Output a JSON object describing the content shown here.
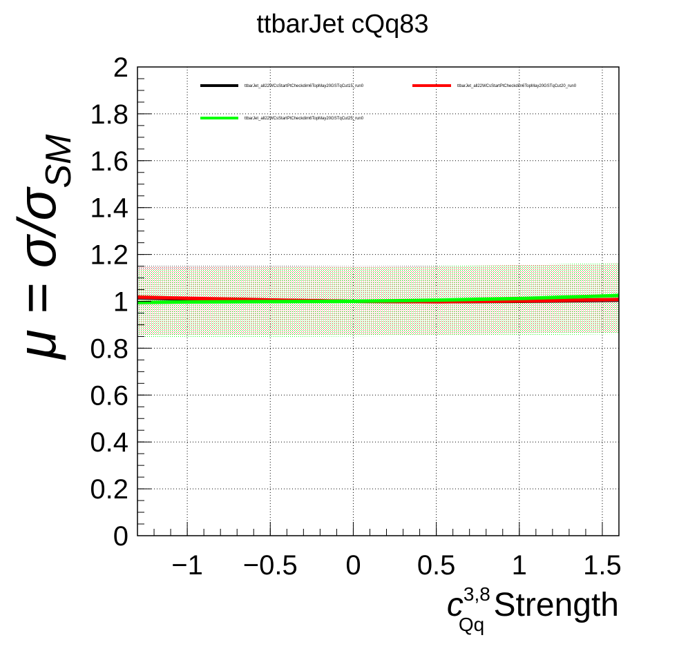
{
  "chart_data": {
    "type": "line",
    "title": "ttbarJet cQq83",
    "xlabel": {
      "main": "c",
      "sup": "3,8",
      "sub": "Qq",
      "rest": " Strength"
    },
    "ylabel": {
      "mu": "μ",
      "eq": " = σ/σ",
      "sub": "SM"
    },
    "xlim": [
      -1.3,
      1.6
    ],
    "ylim": [
      0,
      2
    ],
    "x_ticks": [
      -1,
      -0.5,
      0,
      0.5,
      1,
      1.5
    ],
    "x_tick_labels": [
      "−1",
      "−0.5",
      "0",
      "0.5",
      "1",
      "1.5"
    ],
    "y_ticks": [
      0,
      0.2,
      0.4,
      0.6,
      0.8,
      1,
      1.2,
      1.4,
      1.6,
      1.8,
      2
    ],
    "y_tick_labels": [
      "0",
      "0.2",
      "0.4",
      "0.6",
      "0.8",
      "1",
      "1.2",
      "1.4",
      "1.6",
      "1.8",
      "2"
    ],
    "grid": true,
    "legend_position": "top",
    "series": [
      {
        "name": "ttbarJet_all22WCsStartPtCheckdim6TopMay20GSTqCut15_run0",
        "color": "#000000",
        "x": [
          -1.3,
          -1.0,
          -0.5,
          0.0,
          0.5,
          1.0,
          1.6
        ],
        "y": [
          1.015,
          1.01,
          1.005,
          1.0,
          0.998,
          1.0,
          1.005
        ],
        "band_lo": [
          0.855,
          0.856,
          0.857,
          0.858,
          0.859,
          0.86,
          0.862
        ],
        "band_hi": [
          1.155,
          1.155,
          1.152,
          1.15,
          1.152,
          1.155,
          1.16
        ]
      },
      {
        "name": "ttbarJet_all22WCsStartPtCheckdim6TopMay20GSTqCut20_run0",
        "color": "#ff0000",
        "x": [
          -1.3,
          -1.0,
          -0.5,
          0.0,
          0.5,
          1.0,
          1.6
        ],
        "y": [
          1.018,
          1.013,
          1.006,
          1.0,
          0.998,
          1.001,
          1.008
        ],
        "band_lo": [
          0.86,
          0.86,
          0.86,
          0.86,
          0.86,
          0.862,
          0.865
        ],
        "band_hi": [
          1.15,
          1.15,
          1.148,
          1.147,
          1.15,
          1.155,
          1.162
        ]
      },
      {
        "name": "ttbarJet_all22WCsStartPtCheckdim6TopMay20GSTqCut25_run0",
        "color": "#00ff00",
        "x": [
          -1.3,
          -1.0,
          -0.5,
          0.0,
          0.5,
          1.0,
          1.6
        ],
        "y": [
          0.995,
          0.997,
          0.999,
          1.0,
          1.005,
          1.012,
          1.025
        ],
        "band_lo": [
          0.845,
          0.846,
          0.848,
          0.85,
          0.852,
          0.855,
          0.86
        ],
        "band_hi": [
          1.14,
          1.14,
          1.142,
          1.145,
          1.15,
          1.155,
          1.165
        ]
      }
    ]
  }
}
